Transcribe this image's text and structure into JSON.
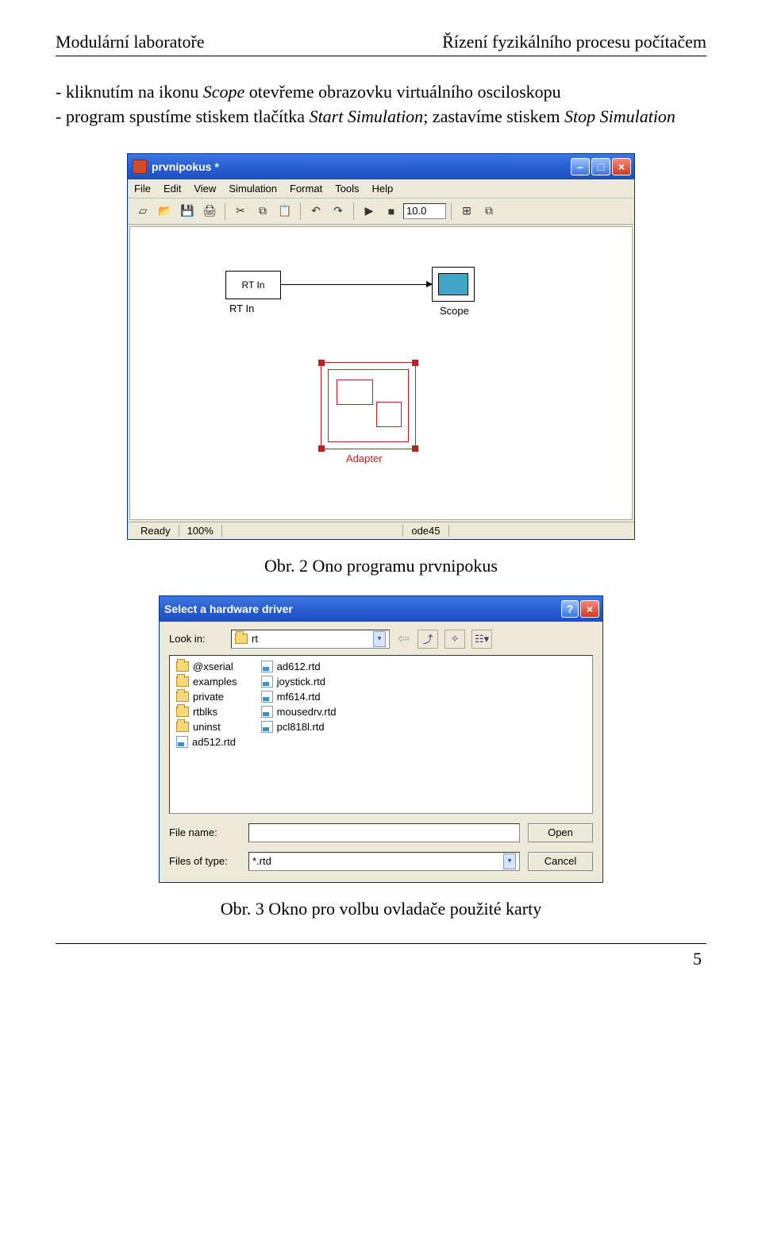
{
  "header": {
    "left": "Modulární laboratoře",
    "right": "Řízení fyzikálního procesu počítačem"
  },
  "para": {
    "l1a": "- kliknutím na ikonu ",
    "l1b": "Scope",
    "l1c": " otevřeme obrazovku virtuálního osciloskopu",
    "l2a": "- program spustíme stiskem tlačítka ",
    "l2b": "Start Simulation",
    "l2c": "; zastavíme stiskem ",
    "l2d": "Stop Simulation"
  },
  "simwin": {
    "title": "prvnipokus *",
    "menu": [
      "File",
      "Edit",
      "View",
      "Simulation",
      "Format",
      "Tools",
      "Help"
    ],
    "time": "10.0",
    "blocks": {
      "rtin": "RT In",
      "rtin_label": "RT In",
      "scope_label": "Scope",
      "adapter_label": "Adapter"
    },
    "status": {
      "ready": "Ready",
      "pct": "100%",
      "solver": "ode45"
    }
  },
  "caption1": "Obr. 2 Ono programu prvnipokus",
  "dlg": {
    "title": "Select a hardware driver",
    "lookin_label": "Look in:",
    "lookin_value": "rt",
    "col1": [
      {
        "t": "folder",
        "n": "@xserial"
      },
      {
        "t": "folder",
        "n": "examples"
      },
      {
        "t": "folder",
        "n": "private"
      },
      {
        "t": "folder",
        "n": "rtblks"
      },
      {
        "t": "folder",
        "n": "uninst"
      },
      {
        "t": "rtd",
        "n": "ad512.rtd"
      }
    ],
    "col2": [
      {
        "t": "rtd",
        "n": "ad612.rtd"
      },
      {
        "t": "rtd",
        "n": "joystick.rtd"
      },
      {
        "t": "rtd",
        "n": "mf614.rtd"
      },
      {
        "t": "rtd",
        "n": "mousedrv.rtd"
      },
      {
        "t": "rtd",
        "n": "pcl818l.rtd"
      }
    ],
    "filename_label": "File name:",
    "filename_value": "",
    "filetype_label": "Files of type:",
    "filetype_value": "*.rtd",
    "open": "Open",
    "cancel": "Cancel"
  },
  "caption2": "Obr. 3 Okno pro volbu ovladače použité karty",
  "page_no": "5"
}
